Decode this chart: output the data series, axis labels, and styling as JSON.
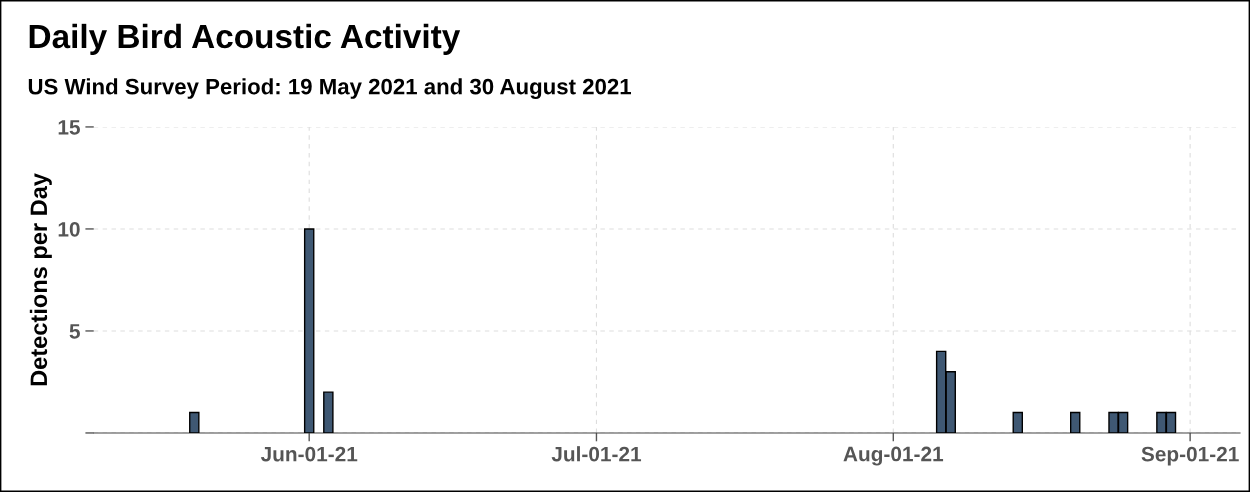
{
  "chart_data": {
    "type": "bar",
    "title": "Daily Bird Acoustic Activity",
    "subtitle": "US Wind Survey Period: 19 May 2021 and 30 August 2021",
    "ylabel": "Detections per Day",
    "x": [
      "2021-05-20",
      "2021-06-01",
      "2021-06-03",
      "2021-08-06",
      "2021-08-07",
      "2021-08-14",
      "2021-08-20",
      "2021-08-24",
      "2021-08-25",
      "2021-08-29",
      "2021-08-30"
    ],
    "values": [
      1,
      10,
      2,
      4,
      3,
      1,
      1,
      1,
      1,
      1,
      1
    ],
    "color": "#3f5873",
    "xlim": [
      "2021-05-09T12:00",
      "2021-09-06T05:00"
    ],
    "xticks": [
      {
        "value": "2021-06-01",
        "label": "Jun-01-21"
      },
      {
        "value": "2021-07-01",
        "label": "Jul-01-21"
      },
      {
        "value": "2021-08-01",
        "label": "Aug-01-21"
      },
      {
        "value": "2021-09-01",
        "label": "Sep-01-21"
      }
    ],
    "ylim": [
      0,
      15
    ],
    "yticks": [
      {
        "value": 0,
        "label": null
      },
      5,
      10,
      15
    ],
    "grid": true,
    "legend": false
  }
}
